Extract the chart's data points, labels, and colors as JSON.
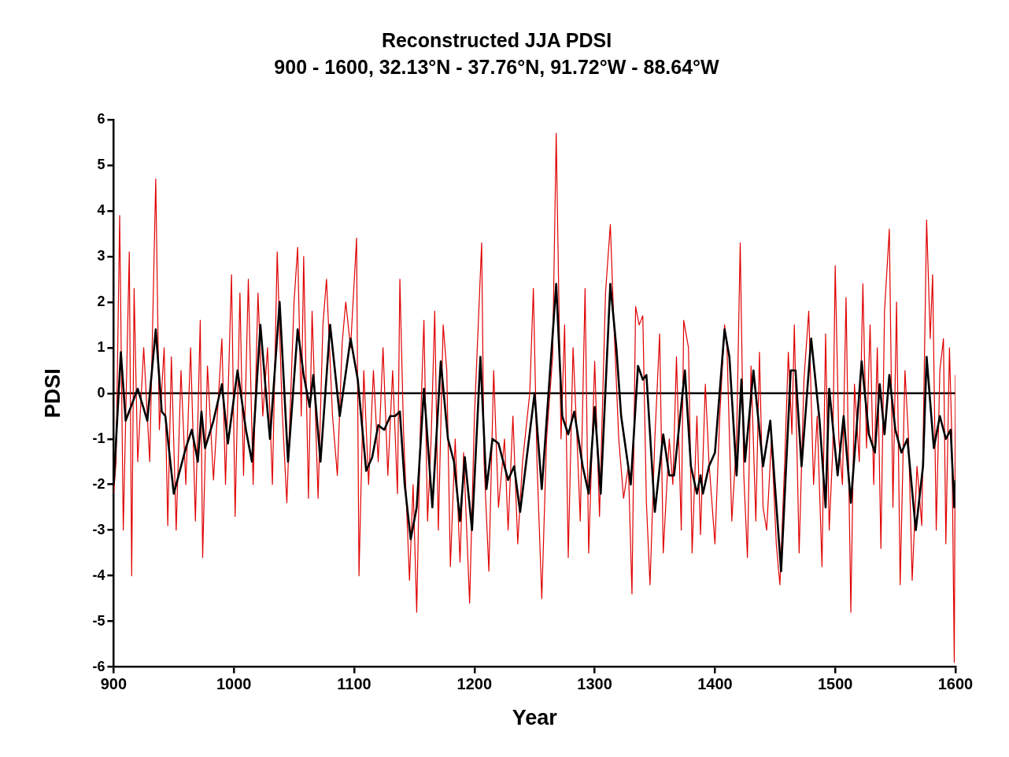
{
  "chart_data": {
    "type": "line",
    "title": "Reconstructed JJA PDSI",
    "subtitle": "900 - 1600, 32.13°N - 37.76°N, 91.72°W - 88.64°W",
    "xlabel": "Year",
    "ylabel": "PDSI",
    "xlim": [
      900,
      1600
    ],
    "xticks": [
      900,
      1000,
      1100,
      1200,
      1300,
      1400,
      1500,
      1600
    ],
    "ylim": [
      -6,
      6
    ],
    "yticks": [
      -6,
      -5,
      -4,
      -3,
      -2,
      -1,
      0,
      1,
      2,
      3,
      4,
      5,
      6
    ],
    "grid": false,
    "legend": false,
    "marker": "none",
    "line_style": "solid",
    "ref_lines": [
      {
        "axis": "y",
        "value": 0,
        "color": "#000000"
      }
    ],
    "series": [
      {
        "color": "#e00000",
        "x": [
          900,
          902,
          905,
          908,
          913,
          915,
          917,
          920,
          925,
          930,
          935,
          938,
          942,
          945,
          948,
          952,
          956,
          960,
          964,
          968,
          972,
          974,
          978,
          983,
          990,
          993,
          998,
          1001,
          1005,
          1008,
          1012,
          1016,
          1020,
          1024,
          1028,
          1032,
          1036,
          1040,
          1044,
          1050,
          1053,
          1056,
          1058,
          1062,
          1065,
          1070,
          1074,
          1077,
          1082,
          1086,
          1090,
          1093,
          1097,
          1102,
          1104,
          1108,
          1112,
          1116,
          1120,
          1124,
          1128,
          1132,
          1136,
          1138,
          1141,
          1146,
          1149,
          1152,
          1155,
          1158,
          1161,
          1164,
          1167,
          1170,
          1174,
          1177,
          1180,
          1184,
          1188,
          1191,
          1196,
          1200,
          1206,
          1208,
          1212,
          1216,
          1220,
          1225,
          1228,
          1232,
          1236,
          1240,
          1246,
          1249,
          1252,
          1256,
          1260,
          1265,
          1268,
          1272,
          1275,
          1278,
          1282,
          1285,
          1288,
          1292,
          1295,
          1300,
          1304,
          1309,
          1313,
          1316,
          1320,
          1324,
          1328,
          1331,
          1334,
          1337,
          1340,
          1343,
          1346,
          1350,
          1354,
          1357,
          1362,
          1365,
          1368,
          1372,
          1374,
          1378,
          1381,
          1385,
          1388,
          1392,
          1395,
          1400,
          1404,
          1408,
          1410,
          1414,
          1418,
          1421,
          1424,
          1427,
          1430,
          1434,
          1437,
          1440,
          1443,
          1447,
          1451,
          1454,
          1458,
          1461,
          1464,
          1466,
          1470,
          1474,
          1478,
          1482,
          1485,
          1489,
          1492,
          1495,
          1498,
          1500,
          1503,
          1506,
          1509,
          1513,
          1516,
          1520,
          1523,
          1526,
          1529,
          1532,
          1535,
          1538,
          1541,
          1545,
          1548,
          1551,
          1554,
          1558,
          1561,
          1564,
          1568,
          1572,
          1576,
          1579,
          1581,
          1584,
          1587,
          1590,
          1592,
          1595,
          1597,
          1599,
          1600
        ],
        "values": [
          -2.2,
          -1.5,
          3.9,
          -3.0,
          3.1,
          -4.0,
          2.3,
          -1.5,
          1.0,
          -1.5,
          4.7,
          -0.8,
          1.0,
          -2.9,
          0.8,
          -3.0,
          0.5,
          -2.0,
          1.0,
          -2.8,
          1.6,
          -3.6,
          0.6,
          -1.9,
          1.2,
          -2.0,
          2.6,
          -2.7,
          2.2,
          -1.8,
          2.5,
          -2.0,
          2.2,
          -0.5,
          1.0,
          -2.0,
          3.1,
          -0.3,
          -2.4,
          2.0,
          3.2,
          -0.5,
          3.0,
          -2.3,
          1.8,
          -2.3,
          1.5,
          2.5,
          -0.5,
          -1.8,
          1.1,
          2.0,
          1.0,
          3.4,
          -4.0,
          0.5,
          -2.0,
          0.5,
          -1.5,
          1.0,
          -1.8,
          0.5,
          -2.2,
          2.5,
          -0.8,
          -4.1,
          -2.0,
          -4.8,
          -0.8,
          1.6,
          -2.8,
          -1.0,
          1.8,
          -3.0,
          1.5,
          0.5,
          -3.8,
          -1.0,
          -3.7,
          -1.3,
          -4.6,
          -0.5,
          3.3,
          -1.5,
          -3.9,
          0.5,
          -2.5,
          -1.0,
          -3.0,
          -0.5,
          -3.3,
          -1.5,
          0.0,
          2.3,
          -1.5,
          -4.5,
          -1.0,
          0.8,
          5.7,
          -1.0,
          1.5,
          -3.6,
          1.0,
          -0.8,
          -2.8,
          2.3,
          -3.5,
          0.7,
          -2.7,
          2.2,
          3.7,
          1.5,
          -1.0,
          -2.3,
          -1.6,
          -4.4,
          1.9,
          1.5,
          1.7,
          -2.4,
          -4.2,
          -1.0,
          1.3,
          -3.5,
          -1.0,
          -2.0,
          0.8,
          -3.0,
          1.6,
          1.0,
          -3.5,
          -0.5,
          -3.1,
          0.2,
          -1.5,
          -3.3,
          -0.5,
          1.5,
          1.0,
          -2.8,
          -1.0,
          3.3,
          -1.8,
          -3.6,
          0.6,
          -2.8,
          0.9,
          -2.5,
          -3.0,
          -1.0,
          -3.3,
          -4.2,
          -1.5,
          0.9,
          -0.9,
          1.5,
          -3.5,
          0.3,
          1.8,
          -2.0,
          -0.5,
          -3.8,
          1.3,
          -3.0,
          -1.2,
          2.8,
          -1.0,
          -2.0,
          2.1,
          -4.8,
          0.2,
          -1.5,
          2.4,
          -1.2,
          1.5,
          -2.0,
          1.0,
          -3.4,
          1.8,
          3.6,
          -2.5,
          2.0,
          -4.2,
          0.5,
          -1.0,
          -4.1,
          -1.6,
          -2.9,
          3.8,
          1.2,
          2.6,
          -3.0,
          0.5,
          1.2,
          -3.3,
          1.0,
          -1.0,
          -5.9,
          0.4
        ]
      },
      {
        "color": "#000000",
        "x": [
          900,
          906,
          910,
          920,
          928,
          935,
          940,
          943,
          950,
          960,
          965,
          970,
          973,
          976,
          983,
          990,
          995,
          1003,
          1010,
          1015,
          1022,
          1027,
          1030,
          1038,
          1045,
          1053,
          1058,
          1063,
          1066,
          1072,
          1080,
          1088,
          1097,
          1103,
          1110,
          1115,
          1120,
          1125,
          1130,
          1134,
          1138,
          1142,
          1147,
          1152,
          1158,
          1165,
          1172,
          1178,
          1183,
          1188,
          1192,
          1198,
          1205,
          1210,
          1215,
          1220,
          1228,
          1233,
          1238,
          1250,
          1256,
          1260,
          1268,
          1273,
          1278,
          1283,
          1290,
          1295,
          1300,
          1305,
          1313,
          1318,
          1322,
          1330,
          1336,
          1340,
          1343,
          1350,
          1357,
          1362,
          1366,
          1375,
          1380,
          1385,
          1388,
          1390,
          1395,
          1400,
          1408,
          1412,
          1418,
          1422,
          1425,
          1432,
          1440,
          1446,
          1455,
          1463,
          1467,
          1472,
          1480,
          1487,
          1492,
          1495,
          1502,
          1507,
          1513,
          1522,
          1528,
          1533,
          1537,
          1541,
          1545,
          1550,
          1555,
          1560,
          1567,
          1573,
          1576,
          1582,
          1587,
          1592,
          1596,
          1599,
          1600
        ],
        "values": [
          -2.0,
          0.9,
          -0.6,
          0.1,
          -0.6,
          1.4,
          -0.4,
          -0.5,
          -2.2,
          -1.2,
          -0.8,
          -1.5,
          -0.4,
          -1.2,
          -0.6,
          0.2,
          -1.1,
          0.5,
          -0.8,
          -1.5,
          1.5,
          -0.1,
          -1.0,
          2.0,
          -1.5,
          1.4,
          0.4,
          -0.3,
          0.4,
          -1.5,
          1.5,
          -0.5,
          1.2,
          0.3,
          -1.7,
          -1.4,
          -0.7,
          -0.8,
          -0.5,
          -0.5,
          -0.4,
          -2.0,
          -3.2,
          -2.5,
          0.1,
          -2.5,
          0.7,
          -1.0,
          -1.5,
          -2.8,
          -1.4,
          -3.0,
          0.8,
          -2.1,
          -1.0,
          -1.1,
          -1.9,
          -1.6,
          -2.6,
          0.0,
          -2.1,
          -0.6,
          2.4,
          -0.5,
          -0.9,
          -0.4,
          -1.6,
          -2.2,
          -0.3,
          -2.2,
          2.4,
          1.0,
          -0.5,
          -2.0,
          0.6,
          0.3,
          0.4,
          -2.6,
          -0.9,
          -1.8,
          -1.8,
          0.5,
          -1.6,
          -2.2,
          -1.8,
          -2.2,
          -1.6,
          -1.3,
          1.4,
          0.8,
          -1.8,
          0.3,
          -1.5,
          0.5,
          -1.6,
          -0.6,
          -3.9,
          0.5,
          0.5,
          -1.6,
          1.2,
          -0.6,
          -2.5,
          0.1,
          -1.8,
          -0.5,
          -2.4,
          0.7,
          -0.9,
          -1.3,
          0.2,
          -0.9,
          0.4,
          -0.8,
          -1.3,
          -1.0,
          -3.0,
          -1.6,
          0.8,
          -1.2,
          -0.5,
          -1.0,
          -0.8,
          -2.5,
          -1.9
        ]
      }
    ]
  }
}
